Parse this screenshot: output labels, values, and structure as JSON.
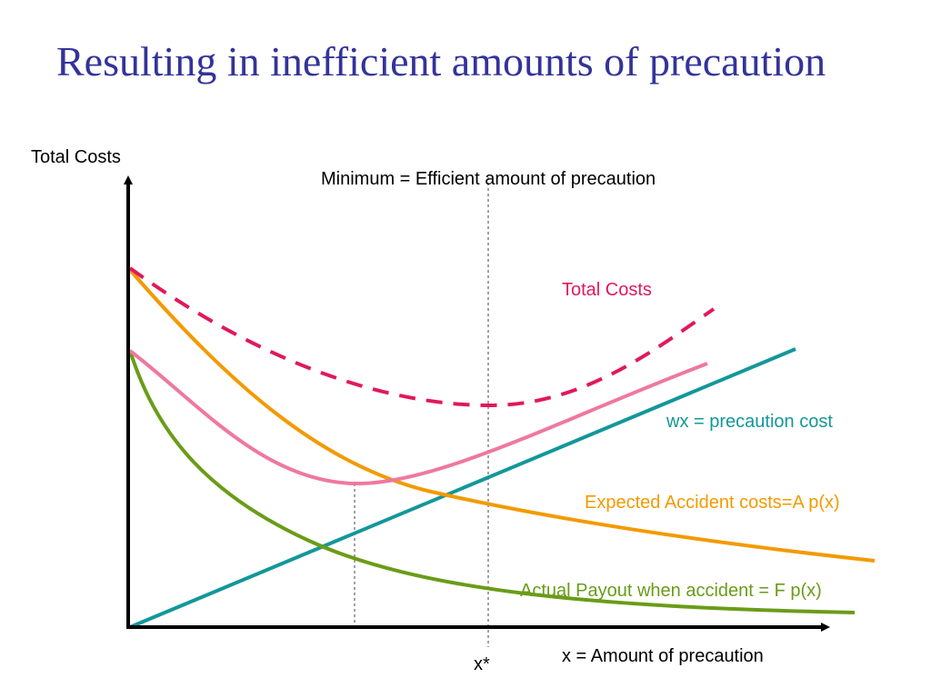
{
  "title": "Resulting in inefficient amounts of precaution",
  "labels": {
    "y_axis": "Total Costs",
    "x_axis": "x = Amount of precaution",
    "minimum_note": "Minimum = Efficient amount of precaution",
    "x_star": "x*",
    "total_costs_curve": "Total Costs",
    "precaution_cost": "wx = precaution cost",
    "expected_accident_costs": "Expected Accident costs=A p(x)",
    "actual_payout": "Actual Payout when accident = F p(x)"
  },
  "colors": {
    "title": "#33339a",
    "axes": "#000000",
    "total_costs": "#e0195c",
    "pink_curve": "#ef78a0",
    "precaution_cost": "#13979a",
    "expected_accident_costs": "#f39a00",
    "actual_payout": "#6a9c18",
    "guide_lines": "#444444"
  }
}
